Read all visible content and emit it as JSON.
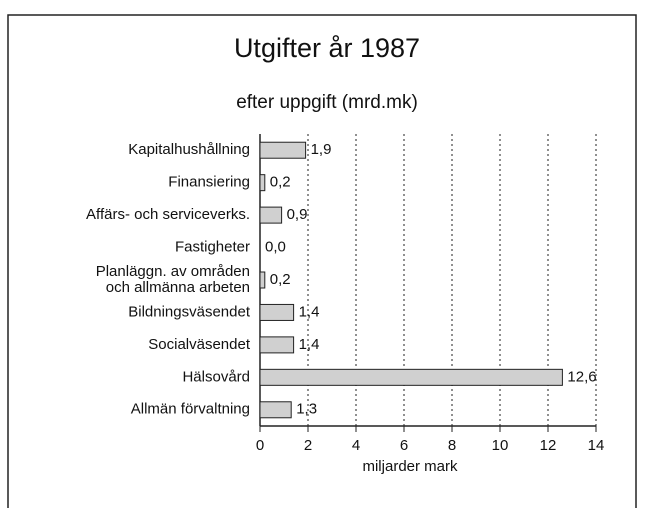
{
  "chart_data": {
    "type": "bar",
    "orientation": "horizontal",
    "title": "Utgifter år 1987",
    "subtitle": "efter uppgift (mrd.mk)",
    "x_label": "miljarder mark",
    "categories": [
      "Kapitalhushållning",
      "Finansiering",
      "Affärs- och serviceverks.",
      "Fastigheter",
      "Planläggn. av områden\noch allmänna arbeten",
      "Bildningsväsendet",
      "Socialväsendet",
      "Hälsovård",
      "Allmän förvaltning"
    ],
    "values": [
      1.9,
      0.2,
      0.9,
      0,
      0.2,
      1.4,
      1.4,
      12.6,
      1.3
    ],
    "value_labels": [
      "1,9",
      "0,2",
      "0,9",
      "0,0",
      "0,2",
      "1,4",
      "1,4",
      "12,6",
      "1,3"
    ],
    "color": "#d0d0d0",
    "xlim": [
      0,
      14
    ],
    "xticks": [
      0,
      2,
      4,
      6,
      8,
      10,
      12,
      14
    ],
    "grid": true
  }
}
